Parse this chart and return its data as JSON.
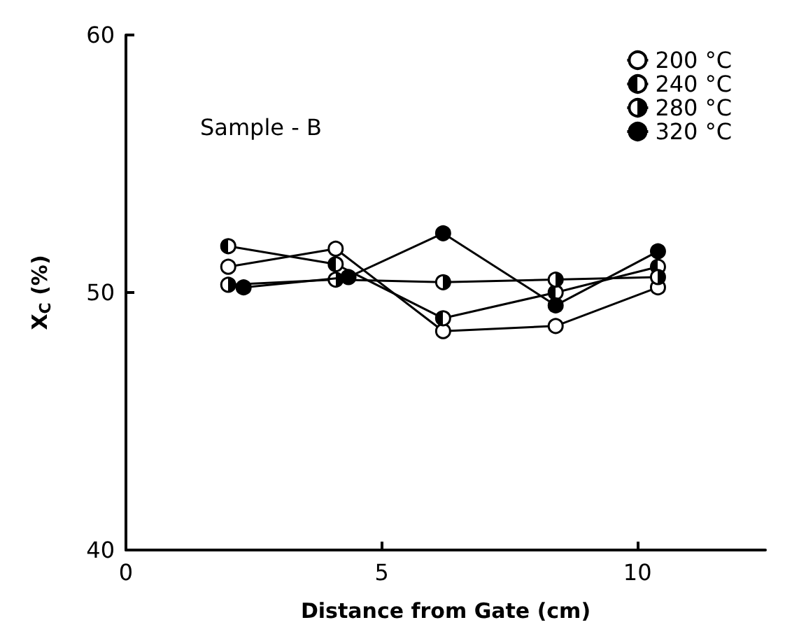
{
  "chart_data": {
    "type": "line",
    "xlabel": "Distance from Gate (cm)",
    "ylabel": "X$_{C}$ (%)",
    "annotations": [
      "Sample - B"
    ],
    "xlim": [
      0,
      12.5
    ],
    "xticks": [
      0,
      5,
      10
    ],
    "ylim": [
      40,
      60
    ],
    "yticks": [
      40,
      50,
      60
    ],
    "grid": false,
    "legend": "top right",
    "marker": "circle",
    "line_style": "solid",
    "series": [
      {
        "name": "200 °C",
        "color": "#000000",
        "x": [
          2.0,
          4.1,
          6.2,
          8.4,
          10.4
        ],
        "values": [
          51.0,
          51.7,
          48.5,
          48.7,
          50.2
        ]
      },
      {
        "name": "240 °C",
        "color": "#000000",
        "x": [
          2.0,
          4.1,
          6.2,
          8.4,
          10.4
        ],
        "values": [
          51.8,
          51.1,
          49.0,
          50.0,
          51.0
        ]
      },
      {
        "name": "280 °C",
        "color": "#000000",
        "x": [
          2.0,
          4.1,
          6.2,
          8.4,
          10.4
        ],
        "values": [
          50.3,
          50.5,
          50.4,
          50.5,
          50.6
        ]
      },
      {
        "name": "320 °C",
        "color": "#000000",
        "x": [
          2.3,
          4.35,
          6.2,
          8.4,
          10.4
        ],
        "values": [
          50.2,
          50.6,
          52.3,
          49.5,
          51.6
        ]
      }
    ]
  }
}
